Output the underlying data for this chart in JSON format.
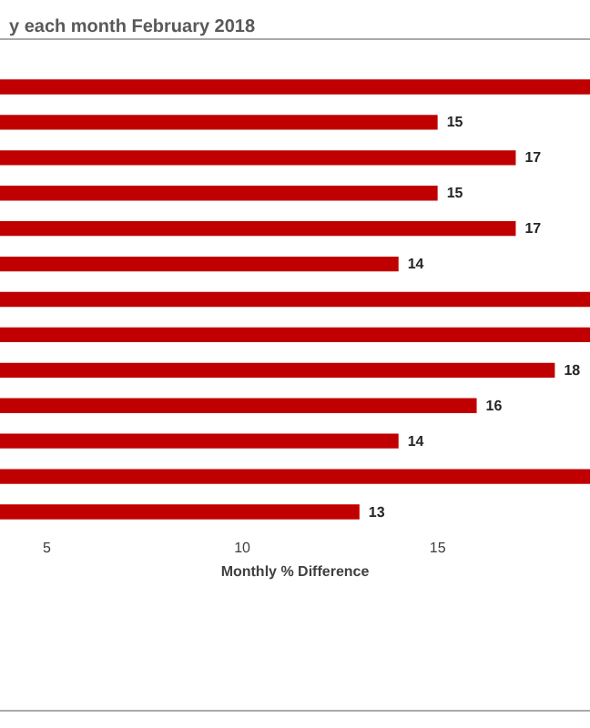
{
  "chart_data": {
    "type": "bar",
    "orientation": "horizontal",
    "title": "y each month February 2018",
    "xlabel": "Monthly % Difference",
    "categories": [
      null,
      null,
      null,
      null,
      null,
      null,
      null,
      null,
      null,
      null,
      null,
      null,
      null
    ],
    "values": [
      18.9,
      15,
      17,
      15,
      17,
      14,
      18.9,
      18.9,
      18,
      16,
      14,
      18.9,
      13
    ],
    "value_labels": [
      null,
      "15",
      "17",
      "15",
      "17",
      "14",
      null,
      null,
      "18",
      "16",
      "14",
      null,
      "13"
    ],
    "color": "#c00000",
    "xlim": [
      3.8,
      18.9
    ],
    "xticks": [
      5,
      10,
      15
    ],
    "grid": false
  }
}
